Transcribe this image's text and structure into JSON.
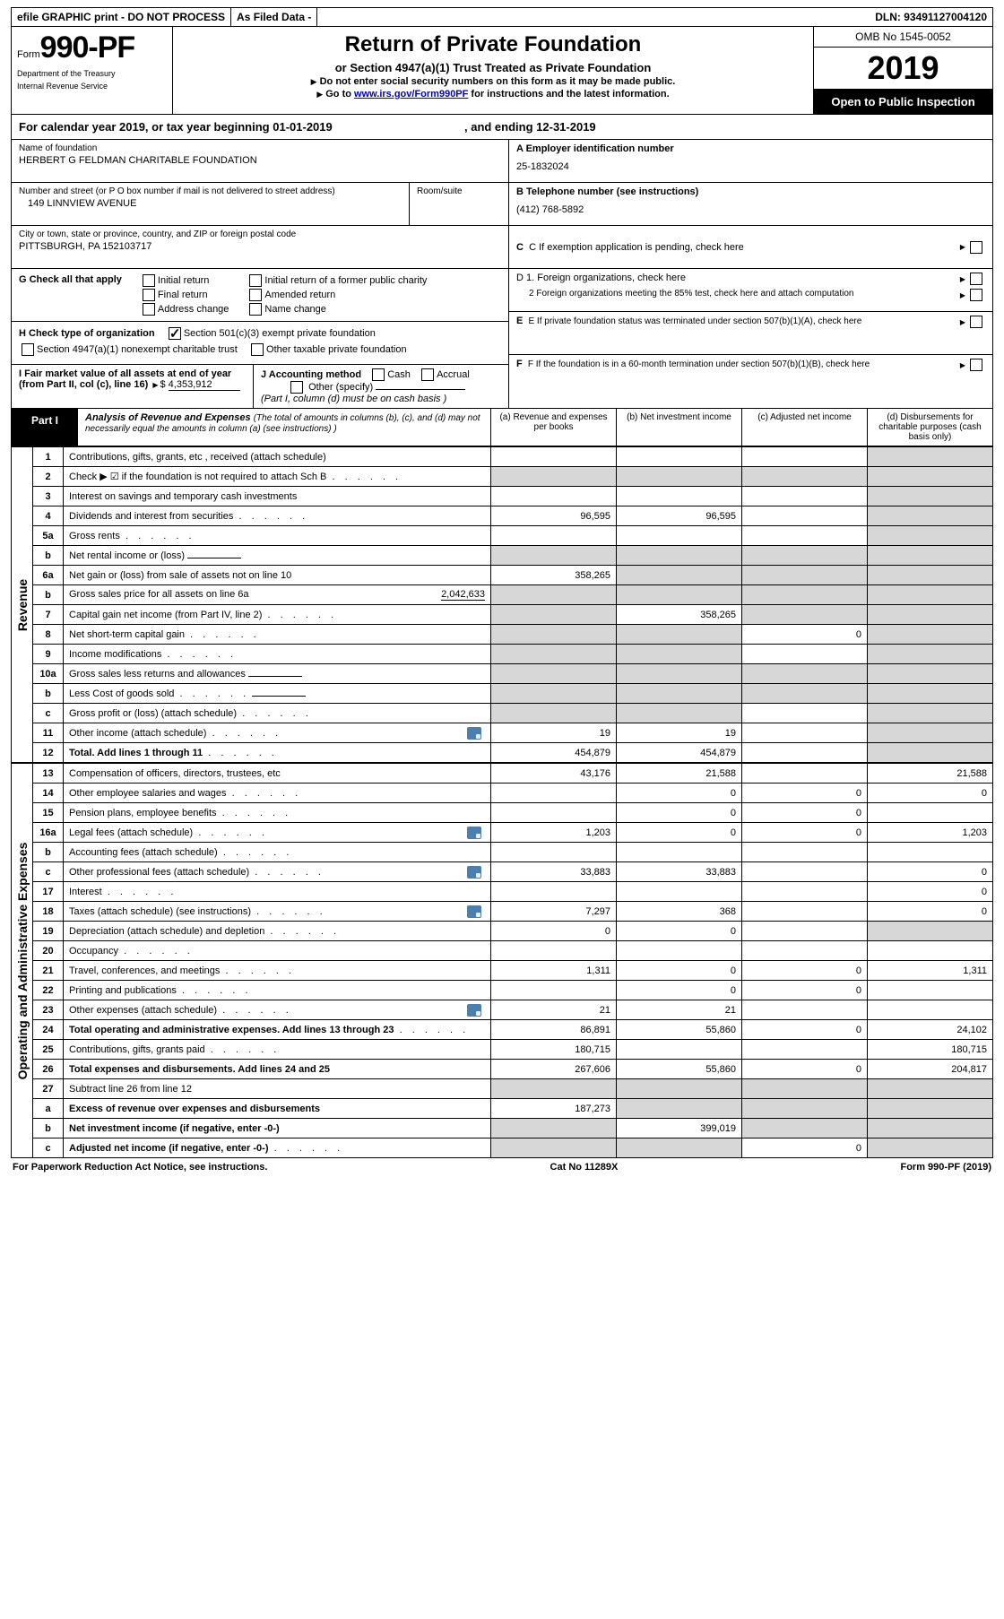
{
  "topbar": {
    "efile": "efile GRAPHIC print - DO NOT PROCESS",
    "asfiled": "As Filed Data -",
    "dln_label": "DLN:",
    "dln": "93491127004120"
  },
  "header": {
    "form_small": "Form",
    "form_big": "990-PF",
    "dept1": "Department of the Treasury",
    "dept2": "Internal Revenue Service",
    "title": "Return of Private Foundation",
    "subtitle": "or Section 4947(a)(1) Trust Treated as Private Foundation",
    "note1": "Do not enter social security numbers on this form as it may be made public.",
    "note2_a": "Go to ",
    "note2_link": "www.irs.gov/Form990PF",
    "note2_b": " for instructions and the latest information.",
    "omb": "OMB No 1545-0052",
    "year": "2019",
    "open": "Open to Public Inspection"
  },
  "cal": {
    "text_a": "For calendar year 2019, or tax year beginning ",
    "begin": "01-01-2019",
    "text_b": ", and ending ",
    "end": "12-31-2019"
  },
  "entity": {
    "name_lbl": "Name of foundation",
    "name": "HERBERT G FELDMAN CHARITABLE FOUNDATION",
    "addr_lbl": "Number and street (or P O  box number if mail is not delivered to street address)",
    "addr": "149 LINNVIEW AVENUE",
    "room_lbl": "Room/suite",
    "city_lbl": "City or town, state or province, country, and ZIP or foreign postal code",
    "city": "PITTSBURGH, PA  152103717",
    "ein_lbl": "A Employer identification number",
    "ein": "25-1832024",
    "tel_lbl": "B Telephone number (see instructions)",
    "tel": "(412) 768-5892",
    "c_lbl": "C  If exemption application is pending, check here",
    "d1": "D 1. Foreign organizations, check here",
    "d2": "2  Foreign organizations meeting the 85% test, check here and attach computation",
    "e_lbl": "E  If private foundation status was terminated under section 507(b)(1)(A), check here",
    "f_lbl": "F  If the foundation is in a 60-month termination under section 507(b)(1)(B), check here"
  },
  "g": {
    "lbl": "G Check all that apply",
    "o1": "Initial return",
    "o2": "Initial return of a former public charity",
    "o3": "Final return",
    "o4": "Amended return",
    "o5": "Address change",
    "o6": "Name change"
  },
  "h": {
    "lbl": "H Check type of organization",
    "o1": "Section 501(c)(3) exempt private foundation",
    "o2": "Section 4947(a)(1) nonexempt charitable trust",
    "o3": "Other taxable private foundation"
  },
  "i": {
    "lbl": "I Fair market value of all assets at end of year (from Part II, col  (c), line 16) ",
    "sym": "$",
    "val": "4,353,912"
  },
  "j": {
    "lbl": "J Accounting method",
    "o1": "Cash",
    "o2": "Accrual",
    "o3": "Other (specify)",
    "note": "(Part I, column (d) must be on cash basis )"
  },
  "part1": {
    "tag": "Part I",
    "title": "Analysis of Revenue and Expenses",
    "paren": "(The total of amounts in columns (b), (c), and (d) may not necessarily equal the amounts in column (a) (see instructions) )",
    "cols": {
      "a": "(a)   Revenue and expenses per books",
      "b": "(b)   Net investment income",
      "c": "(c)   Adjusted net income",
      "d": "(d)   Disbursements for charitable purposes (cash basis only)"
    }
  },
  "side_rev": "Revenue",
  "side_exp": "Operating and Administrative Expenses",
  "rows": [
    {
      "n": "1",
      "d": "Contributions, gifts, grants, etc , received (attach schedule)",
      "a": "",
      "b": "",
      "c": "",
      "dd": "",
      "g": "d"
    },
    {
      "n": "2",
      "d": "Check ▶ ☑ if the foundation is not required to attach Sch  B",
      "dots": true,
      "a": "",
      "b": "",
      "c": "",
      "dd": "",
      "g": "d",
      "ga": "g",
      "gb": "g",
      "gc": "g"
    },
    {
      "n": "3",
      "d": "Interest on savings and temporary cash investments",
      "a": "",
      "b": "",
      "c": "",
      "dd": "",
      "g": "d"
    },
    {
      "n": "4",
      "d": "Dividends and interest from securities",
      "dots": true,
      "a": "96,595",
      "b": "96,595",
      "c": "",
      "dd": "",
      "g": "d"
    },
    {
      "n": "5a",
      "d": "Gross rents",
      "dots": true,
      "a": "",
      "b": "",
      "c": "",
      "dd": "",
      "g": "d"
    },
    {
      "n": "b",
      "d": "Net rental income or (loss)",
      "inline": true,
      "a": "",
      "b": "",
      "c": "",
      "dd": "",
      "ga": "g",
      "gb": "g",
      "gc": "g",
      "g": "d"
    },
    {
      "n": "6a",
      "d": "Net gain or (loss) from sale of assets not on line 10",
      "a": "358,265",
      "b": "",
      "c": "",
      "dd": "",
      "gb": "g",
      "gc": "g",
      "g": "d"
    },
    {
      "n": "b",
      "d": "Gross sales price for all assets on line 6a",
      "tail": "2,042,633",
      "a": "",
      "b": "",
      "c": "",
      "dd": "",
      "ga": "g",
      "gb": "g",
      "gc": "g",
      "g": "d"
    },
    {
      "n": "7",
      "d": "Capital gain net income (from Part IV, line 2)",
      "dots": true,
      "a": "",
      "b": "358,265",
      "c": "",
      "dd": "",
      "ga": "g",
      "gc": "g",
      "g": "d"
    },
    {
      "n": "8",
      "d": "Net short-term capital gain",
      "dots": true,
      "a": "",
      "b": "",
      "c": "0",
      "dd": "",
      "ga": "g",
      "gb": "g",
      "g": "d"
    },
    {
      "n": "9",
      "d": "Income modifications",
      "dots": true,
      "a": "",
      "b": "",
      "c": "",
      "dd": "",
      "ga": "g",
      "gb": "g",
      "g": "d"
    },
    {
      "n": "10a",
      "d": "Gross sales less returns and allowances",
      "inline": true,
      "a": "",
      "b": "",
      "c": "",
      "dd": "",
      "ga": "g",
      "gb": "g",
      "gc": "g",
      "g": "d"
    },
    {
      "n": "b",
      "d": "Less  Cost of goods sold",
      "inline": true,
      "dots": true,
      "a": "",
      "b": "",
      "c": "",
      "dd": "",
      "ga": "g",
      "gb": "g",
      "gc": "g",
      "g": "d"
    },
    {
      "n": "c",
      "d": "Gross profit or (loss) (attach schedule)",
      "dots": true,
      "a": "",
      "b": "",
      "c": "",
      "dd": "",
      "ga": "g",
      "gb": "g",
      "g": "d"
    },
    {
      "n": "11",
      "d": "Other income (attach schedule)",
      "dots": true,
      "icon": true,
      "a": "19",
      "b": "19",
      "c": "",
      "dd": "",
      "g": "d"
    },
    {
      "n": "12",
      "d": "Total. Add lines 1 through 11",
      "bold": true,
      "dots": true,
      "a": "454,879",
      "b": "454,879",
      "c": "",
      "dd": "",
      "g": "d"
    }
  ],
  "rows2": [
    {
      "n": "13",
      "d": "Compensation of officers, directors, trustees, etc",
      "a": "43,176",
      "b": "21,588",
      "c": "",
      "dd": "21,588"
    },
    {
      "n": "14",
      "d": "Other employee salaries and wages",
      "dots": true,
      "a": "",
      "b": "0",
      "c": "0",
      "dd": "0"
    },
    {
      "n": "15",
      "d": "Pension plans, employee benefits",
      "dots": true,
      "a": "",
      "b": "0",
      "c": "0",
      "dd": ""
    },
    {
      "n": "16a",
      "d": "Legal fees (attach schedule)",
      "dots": true,
      "icon": true,
      "a": "1,203",
      "b": "0",
      "c": "0",
      "dd": "1,203"
    },
    {
      "n": "b",
      "d": "Accounting fees (attach schedule)",
      "dots": true,
      "a": "",
      "b": "",
      "c": "",
      "dd": ""
    },
    {
      "n": "c",
      "d": "Other professional fees (attach schedule)",
      "dots": true,
      "icon": true,
      "a": "33,883",
      "b": "33,883",
      "c": "",
      "dd": "0"
    },
    {
      "n": "17",
      "d": "Interest",
      "dots": true,
      "a": "",
      "b": "",
      "c": "",
      "dd": "0"
    },
    {
      "n": "18",
      "d": "Taxes (attach schedule) (see instructions)",
      "dots": true,
      "icon": true,
      "a": "7,297",
      "b": "368",
      "c": "",
      "dd": "0"
    },
    {
      "n": "19",
      "d": "Depreciation (attach schedule) and depletion",
      "dots": true,
      "a": "0",
      "b": "0",
      "c": "",
      "dd": "",
      "g": "d"
    },
    {
      "n": "20",
      "d": "Occupancy",
      "dots": true,
      "a": "",
      "b": "",
      "c": "",
      "dd": ""
    },
    {
      "n": "21",
      "d": "Travel, conferences, and meetings",
      "dots": true,
      "a": "1,311",
      "b": "0",
      "c": "0",
      "dd": "1,311"
    },
    {
      "n": "22",
      "d": "Printing and publications",
      "dots": true,
      "a": "",
      "b": "0",
      "c": "0",
      "dd": ""
    },
    {
      "n": "23",
      "d": "Other expenses (attach schedule)",
      "dots": true,
      "icon": true,
      "a": "21",
      "b": "21",
      "c": "",
      "dd": ""
    },
    {
      "n": "24",
      "d": "Total operating and administrative expenses. Add lines 13 through 23",
      "bold": true,
      "dots": true,
      "a": "86,891",
      "b": "55,860",
      "c": "0",
      "dd": "24,102"
    },
    {
      "n": "25",
      "d": "Contributions, gifts, grants paid",
      "dots": true,
      "a": "180,715",
      "b": "",
      "c": "",
      "dd": "180,715"
    },
    {
      "n": "26",
      "d": "Total expenses and disbursements. Add lines 24 and 25",
      "bold": true,
      "a": "267,606",
      "b": "55,860",
      "c": "0",
      "dd": "204,817"
    },
    {
      "n": "27",
      "d": "Subtract line 26 from line 12",
      "a": "",
      "b": "",
      "c": "",
      "dd": "",
      "ga": "g",
      "gb": "g",
      "gc": "g",
      "g": "d"
    },
    {
      "n": "a",
      "d": "Excess of revenue over expenses and disbursements",
      "bold": true,
      "a": "187,273",
      "b": "",
      "c": "",
      "dd": "",
      "gb": "g",
      "gc": "g",
      "g": "d"
    },
    {
      "n": "b",
      "d": "Net investment income (if negative, enter -0-)",
      "bold": true,
      "a": "",
      "b": "399,019",
      "c": "",
      "dd": "",
      "ga": "g",
      "gc": "g",
      "g": "d"
    },
    {
      "n": "c",
      "d": "Adjusted net income (if negative, enter -0-)",
      "bold": true,
      "dots": true,
      "a": "",
      "b": "",
      "c": "0",
      "dd": "",
      "ga": "g",
      "gb": "g",
      "g": "d"
    }
  ],
  "foot": {
    "left": "For Paperwork Reduction Act Notice, see instructions.",
    "mid": "Cat  No  11289X",
    "right": "Form 990-PF (2019)"
  }
}
